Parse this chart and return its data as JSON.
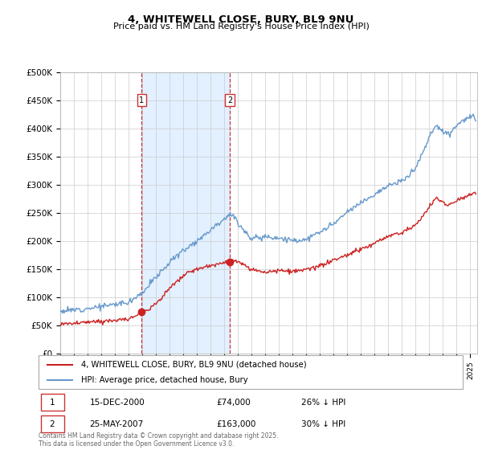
{
  "title_line1": "4, WHITEWELL CLOSE, BURY, BL9 9NU",
  "title_line2": "Price paid vs. HM Land Registry's House Price Index (HPI)",
  "ylim": [
    0,
    500000
  ],
  "yticks": [
    0,
    50000,
    100000,
    150000,
    200000,
    250000,
    300000,
    350000,
    400000,
    450000,
    500000
  ],
  "ytick_labels": [
    "£0",
    "£50K",
    "£100K",
    "£150K",
    "£200K",
    "£250K",
    "£300K",
    "£350K",
    "£400K",
    "£450K",
    "£500K"
  ],
  "hpi_color": "#6699cc",
  "price_color": "#cc2222",
  "marker_color": "#cc2222",
  "annotation_box_color": "#cc3333",
  "vline_color": "#cc3333",
  "vline_fill": "#ddeeff",
  "sale1_year": 2000.96,
  "sale1_value": 74000,
  "sale2_year": 2007.4,
  "sale2_value": 163000,
  "sale1_date": "15-DEC-2000",
  "sale1_price": "£74,000",
  "sale1_hpi": "26% ↓ HPI",
  "sale2_date": "25-MAY-2007",
  "sale2_price": "£163,000",
  "sale2_hpi": "30% ↓ HPI",
  "footer": "Contains HM Land Registry data © Crown copyright and database right 2025.\nThis data is licensed under the Open Government Licence v3.0.",
  "grid_color": "#cccccc"
}
